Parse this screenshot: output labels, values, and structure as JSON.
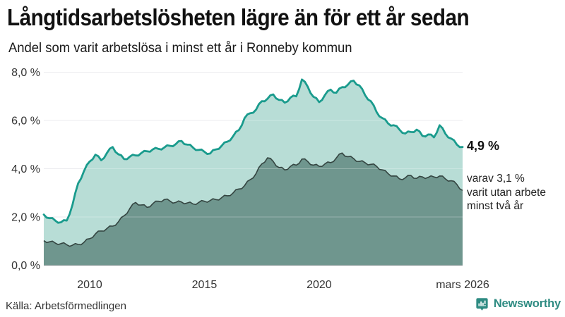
{
  "chart_data": {
    "type": "area",
    "title": "Långtidsarbetslösheten lägre än för ett år sedan",
    "subtitle": "Andel som varit arbetslösa i minst ett år i Ronneby kommun",
    "x_unit": "decimal_year",
    "ylim": [
      0,
      8
    ],
    "grid": true,
    "grid_color": "#e4e4e9",
    "x": [
      2008,
      2008.25,
      2008.5,
      2008.75,
      2009,
      2009.25,
      2009.5,
      2009.75,
      2010,
      2010.25,
      2010.5,
      2010.75,
      2011,
      2011.25,
      2011.5,
      2011.75,
      2012,
      2012.25,
      2012.5,
      2012.75,
      2013,
      2013.25,
      2013.5,
      2013.75,
      2014,
      2014.25,
      2014.5,
      2014.75,
      2015,
      2015.25,
      2015.5,
      2015.75,
      2016,
      2016.25,
      2016.5,
      2016.75,
      2017,
      2017.25,
      2017.5,
      2017.75,
      2018,
      2018.25,
      2018.5,
      2018.75,
      2019,
      2019.25,
      2019.5,
      2019.75,
      2020,
      2020.25,
      2020.5,
      2020.75,
      2021,
      2021.25,
      2021.5,
      2021.75,
      2022,
      2022.25,
      2022.5,
      2022.75,
      2023,
      2023.25,
      2023.5,
      2023.75,
      2024,
      2024.25,
      2024.5,
      2024.75,
      2025,
      2025.25,
      2025.5,
      2025.75,
      2026,
      2026.25
    ],
    "series": [
      {
        "name": "Arbetslösa minst ett år",
        "color": "#1a9b8d",
        "fill": "#b8ddd6",
        "line_width": 2.8,
        "values": [
          2.1,
          1.95,
          1.85,
          1.78,
          1.85,
          2.5,
          3.4,
          3.9,
          4.3,
          4.58,
          4.35,
          4.65,
          4.9,
          4.6,
          4.4,
          4.5,
          4.55,
          4.65,
          4.72,
          4.8,
          4.82,
          4.88,
          4.95,
          5.02,
          5.15,
          5.0,
          4.88,
          4.78,
          4.7,
          4.63,
          4.8,
          4.95,
          5.12,
          5.35,
          5.6,
          6.1,
          6.3,
          6.45,
          6.8,
          6.9,
          7.08,
          6.85,
          6.74,
          6.95,
          7.0,
          7.7,
          7.4,
          6.98,
          6.76,
          7.05,
          7.28,
          7.15,
          7.38,
          7.48,
          7.65,
          7.45,
          7.05,
          6.8,
          6.35,
          6.1,
          5.88,
          5.8,
          5.62,
          5.46,
          5.52,
          5.62,
          5.36,
          5.42,
          5.3,
          5.8,
          5.45,
          5.25,
          5.0,
          4.9
        ]
      },
      {
        "name": "Utan arbete minst två år",
        "color": "#344541",
        "fill": "#6f968e",
        "line_width": 1.6,
        "values": [
          1.02,
          0.97,
          0.92,
          0.9,
          0.85,
          0.83,
          0.86,
          0.95,
          1.1,
          1.3,
          1.42,
          1.52,
          1.62,
          1.8,
          2.05,
          2.35,
          2.6,
          2.5,
          2.4,
          2.55,
          2.65,
          2.72,
          2.66,
          2.6,
          2.62,
          2.58,
          2.54,
          2.6,
          2.65,
          2.68,
          2.72,
          2.8,
          2.88,
          3.0,
          3.16,
          3.3,
          3.55,
          3.8,
          4.2,
          4.45,
          4.3,
          4.05,
          3.95,
          4.1,
          4.15,
          4.4,
          4.3,
          4.15,
          4.1,
          4.2,
          4.25,
          4.45,
          4.65,
          4.5,
          4.42,
          4.3,
          4.25,
          4.18,
          4.1,
          3.95,
          3.8,
          3.7,
          3.58,
          3.62,
          3.72,
          3.6,
          3.66,
          3.64,
          3.66,
          3.7,
          3.58,
          3.5,
          3.35,
          3.1
        ]
      }
    ],
    "yticks": [
      {
        "value": 0,
        "label": "0,0 %"
      },
      {
        "value": 2,
        "label": "2,0 %"
      },
      {
        "value": 4,
        "label": "4,0 %"
      },
      {
        "value": 6,
        "label": "6,0 %"
      },
      {
        "value": 8,
        "label": "8,0 %"
      }
    ],
    "xticks": [
      {
        "value": 2010,
        "label": "2010"
      },
      {
        "value": 2015,
        "label": "2015"
      },
      {
        "value": 2020,
        "label": "2020"
      },
      {
        "value": 2026.25,
        "label": "mars 2026"
      }
    ],
    "annotations": {
      "latest_total": "4,9 %",
      "secondary_lines": [
        "varav 3,1 %",
        "varit utan arbete",
        "minst två år"
      ]
    }
  },
  "footer": {
    "source": "Källa: Arbetsförmedlingen",
    "brand": "Newsworthy",
    "brand_color": "#2e8b82"
  }
}
